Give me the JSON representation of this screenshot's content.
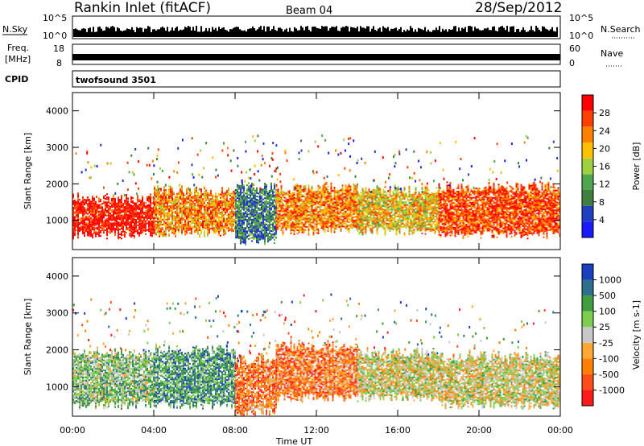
{
  "header": {
    "station": "Rankin Inlet (fitACF)",
    "beam": "Beam 04",
    "date": "28/Sep/2012"
  },
  "strips": {
    "nsky_label": "N.Sky",
    "nsky_ticks": [
      "10^5",
      "10^0"
    ],
    "nsearch_label": "N.Search",
    "freq_label": "Freq.",
    "freq_unit": "[MHz]",
    "freq_ticks": [
      "18",
      "8"
    ],
    "nave_ticks": [
      "60",
      "0"
    ],
    "nave_label": "Nave",
    "cpid_label": "CPID",
    "cpid_value": "twofsound 3501"
  },
  "colors": {
    "power": [
      "#1a1aff",
      "#1f3fbf",
      "#3f7f3f",
      "#4fa64f",
      "#9fd13f",
      "#ffc000",
      "#ff8000",
      "#ff4000",
      "#ff0000"
    ],
    "velocity": [
      "#ff1a1a",
      "#ff4d1a",
      "#ff8000",
      "#ffa733",
      "#c8c8c8",
      "#7fcf4f",
      "#3f9f3f",
      "#2e6e8f",
      "#1a3fbf"
    ]
  },
  "chart_data": [
    {
      "type": "heatmap",
      "name": "power",
      "ylabel": "Slant Range [km]",
      "xlabel": "Time UT",
      "ylim": [
        200,
        4500
      ],
      "xlim": [
        0,
        24
      ],
      "yticks": [
        "1000",
        "2000",
        "3000",
        "4000"
      ],
      "xticks": [
        "00:00",
        "04:00",
        "08:00",
        "12:00",
        "16:00",
        "20:00",
        "00:00"
      ],
      "colorbar_label": "Power [dB]",
      "colorbar_ticks": [
        "4",
        "8",
        "12",
        "16",
        "20",
        "24",
        "28"
      ],
      "bands": [
        {
          "t0": 0,
          "t1": 4,
          "r0": 600,
          "r1": 1600,
          "level": 8
        },
        {
          "t0": 4,
          "t1": 8,
          "r0": 650,
          "r1": 1800,
          "level": 6
        },
        {
          "t0": 8,
          "t1": 10,
          "r0": 400,
          "r1": 1900,
          "level": 2
        },
        {
          "t0": 10,
          "t1": 14,
          "r0": 700,
          "r1": 1900,
          "level": 6
        },
        {
          "t0": 14,
          "t1": 18,
          "r0": 700,
          "r1": 1800,
          "level": 5
        },
        {
          "t0": 18,
          "t1": 24,
          "r0": 600,
          "r1": 1900,
          "level": 7
        }
      ]
    },
    {
      "type": "heatmap",
      "name": "velocity",
      "ylabel": "Slant Range [km]",
      "xlabel": "Time UT",
      "ylim": [
        200,
        4500
      ],
      "xlim": [
        0,
        24
      ],
      "yticks": [
        "1000",
        "2000",
        "3000",
        "4000"
      ],
      "xticks": [
        "00:00",
        "04:00",
        "08:00",
        "12:00",
        "16:00",
        "20:00",
        "00:00"
      ],
      "colorbar_label": "Velocity [m s-1]",
      "colorbar_ticks": [
        "1000",
        "500",
        "100",
        "25",
        "-25",
        "-100",
        "-500",
        "-1000"
      ],
      "bands": [
        {
          "t0": 0,
          "t1": 4,
          "r0": 500,
          "r1": 1900,
          "level": 5
        },
        {
          "t0": 4,
          "t1": 8,
          "r0": 500,
          "r1": 2000,
          "level": 6
        },
        {
          "t0": 8,
          "t1": 10,
          "r0": 300,
          "r1": 1700,
          "level": 2
        },
        {
          "t0": 10,
          "t1": 14,
          "r0": 700,
          "r1": 2100,
          "level": 2
        },
        {
          "t0": 14,
          "t1": 18,
          "r0": 700,
          "r1": 1900,
          "level": 4
        },
        {
          "t0": 18,
          "t1": 24,
          "r0": 500,
          "r1": 1800,
          "level": 4
        }
      ]
    }
  ]
}
